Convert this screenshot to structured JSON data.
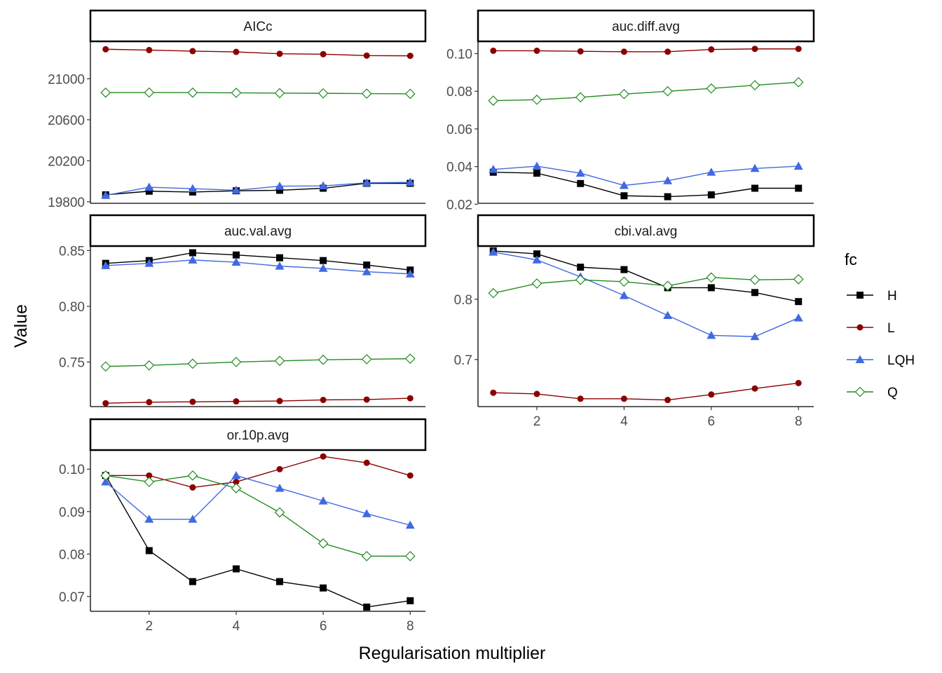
{
  "chart_data": {
    "type": "line",
    "facet_by": "metric",
    "xlabel": "Regularisation multiplier",
    "ylabel": "Value",
    "x": [
      1,
      2,
      3,
      4,
      5,
      6,
      7,
      8
    ],
    "x_ticks": [
      "2",
      "4",
      "6",
      "8"
    ],
    "legend": {
      "title": "fc",
      "placement": "right",
      "entries": [
        {
          "name": "H",
          "color": "#000000",
          "marker": "square"
        },
        {
          "name": "L",
          "color": "#8B0000",
          "marker": "circle"
        },
        {
          "name": "LQH",
          "color": "#4169E1",
          "marker": "triangle"
        },
        {
          "name": "Q",
          "color": "#228B22",
          "marker": "diamond-open"
        }
      ]
    },
    "grid": false,
    "facets": [
      {
        "title": "AICc",
        "ylim": [
          19785,
          21365
        ],
        "y_ticks": [
          "19800",
          "20200",
          "20600",
          "21000"
        ],
        "series": [
          {
            "name": "H",
            "values": [
              19868,
              19903,
              19895,
              19907,
              19912,
              19932,
              19980,
              19980
            ]
          },
          {
            "name": "L",
            "values": [
              21288,
              21280,
              21270,
              21262,
              21244,
              21240,
              21226,
              21224
            ]
          },
          {
            "name": "LQH",
            "values": [
              19862,
              19942,
              19928,
              19912,
              19952,
              19955,
              19985,
              19990
            ]
          },
          {
            "name": "Q",
            "values": [
              20865,
              20866,
              20865,
              20863,
              20860,
              20858,
              20855,
              20853
            ]
          }
        ]
      },
      {
        "title": "auc.diff.avg",
        "ylim": [
          0.0205,
          0.1065
        ],
        "y_ticks": [
          "0.02",
          "0.04",
          "0.06",
          "0.08",
          "0.10"
        ],
        "series": [
          {
            "name": "H",
            "values": [
              0.037,
              0.0365,
              0.031,
              0.0245,
              0.024,
              0.025,
              0.0285,
              0.0285
            ]
          },
          {
            "name": "L",
            "values": [
              0.1015,
              0.1015,
              0.1012,
              0.101,
              0.101,
              0.1022,
              0.1025,
              0.1025
            ]
          },
          {
            "name": "LQH",
            "values": [
              0.0385,
              0.0402,
              0.0365,
              0.03,
              0.0325,
              0.037,
              0.039,
              0.0402
            ]
          },
          {
            "name": "Q",
            "values": [
              0.075,
              0.0755,
              0.0768,
              0.0785,
              0.08,
              0.0815,
              0.0832,
              0.0848
            ]
          }
        ]
      },
      {
        "title": "auc.val.avg",
        "ylim": [
          0.71,
          0.854
        ],
        "y_ticks": [
          "0.75",
          "0.80",
          "0.85"
        ],
        "series": [
          {
            "name": "H",
            "values": [
              0.8385,
              0.841,
              0.848,
              0.846,
              0.8435,
              0.841,
              0.837,
              0.8325
            ]
          },
          {
            "name": "L",
            "values": [
              0.713,
              0.714,
              0.7143,
              0.7147,
              0.715,
              0.716,
              0.7163,
              0.7175
            ]
          },
          {
            "name": "LQH",
            "values": [
              0.8365,
              0.8385,
              0.8415,
              0.8395,
              0.836,
              0.834,
              0.831,
              0.829
            ]
          },
          {
            "name": "Q",
            "values": [
              0.746,
              0.747,
              0.7485,
              0.75,
              0.751,
              0.752,
              0.7525,
              0.753
            ]
          }
        ]
      },
      {
        "title": "cbi.val.avg",
        "ylim": [
          0.622,
          0.888
        ],
        "y_ticks": [
          "0.7",
          "0.8"
        ],
        "series": [
          {
            "name": "H",
            "values": [
              0.88,
              0.875,
              0.853,
              0.849,
              0.819,
              0.819,
              0.811,
              0.796
            ]
          },
          {
            "name": "L",
            "values": [
              0.645,
              0.643,
              0.635,
              0.635,
              0.633,
              0.642,
              0.652,
              0.661
            ]
          },
          {
            "name": "LQH",
            "values": [
              0.878,
              0.865,
              0.837,
              0.806,
              0.773,
              0.74,
              0.738,
              0.769
            ]
          },
          {
            "name": "Q",
            "values": [
              0.81,
              0.826,
              0.832,
              0.829,
              0.822,
              0.836,
              0.832,
              0.833
            ]
          }
        ]
      },
      {
        "title": "or.10p.avg",
        "ylim": [
          0.0665,
          0.1045
        ],
        "y_ticks": [
          "0.07",
          "0.08",
          "0.09",
          "0.10"
        ],
        "series": [
          {
            "name": "H",
            "values": [
              0.0985,
              0.0808,
              0.0735,
              0.0765,
              0.0735,
              0.072,
              0.0675,
              0.069
            ]
          },
          {
            "name": "L",
            "values": [
              0.0985,
              0.0985,
              0.0957,
              0.097,
              0.1,
              0.103,
              0.1015,
              0.0985
            ]
          },
          {
            "name": "LQH",
            "values": [
              0.097,
              0.0882,
              0.0882,
              0.0985,
              0.0955,
              0.0925,
              0.0895,
              0.0868
            ]
          },
          {
            "name": "Q",
            "values": [
              0.0985,
              0.097,
              0.0985,
              0.0955,
              0.0898,
              0.0825,
              0.0795,
              0.0795
            ]
          }
        ]
      }
    ]
  }
}
